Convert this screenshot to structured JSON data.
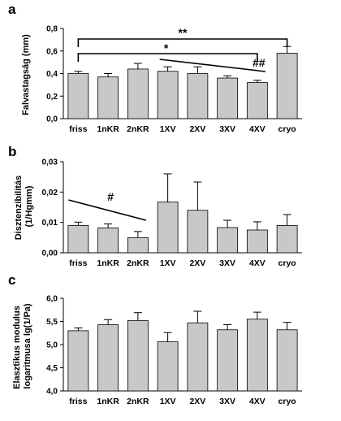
{
  "chart_data": [
    {
      "type": "bar",
      "panel": "a",
      "ylabel": "Falvastagság (mm)",
      "categories": [
        "friss",
        "1nKR",
        "2nKR",
        "1XV",
        "2XV",
        "3XV",
        "4XV",
        "cryo"
      ],
      "values": [
        0.4,
        0.37,
        0.44,
        0.42,
        0.4,
        0.36,
        0.32,
        0.58
      ],
      "errors": [
        0.02,
        0.03,
        0.05,
        0.04,
        0.06,
        0.02,
        0.02,
        0.06
      ],
      "ylim": [
        0,
        0.8
      ],
      "yticks": [
        "0,0",
        "0,2",
        "0,4",
        "0,6",
        "0,8"
      ],
      "annotations": [
        {
          "label": "**",
          "from": "friss",
          "to": "cryo"
        },
        {
          "label": "*",
          "from": "friss",
          "to": "4XV"
        },
        {
          "label": "##",
          "from": "1XV",
          "to": "4XV"
        }
      ]
    },
    {
      "type": "bar",
      "panel": "b",
      "ylabel": "Disztenzibilitás (1/Hgmm)",
      "categories": [
        "friss",
        "1nKR",
        "2nKR",
        "1XV",
        "2XV",
        "3XV",
        "4XV",
        "cryo"
      ],
      "values": [
        0.009,
        0.0082,
        0.005,
        0.0167,
        0.014,
        0.0083,
        0.0075,
        0.009
      ],
      "errors": [
        0.0011,
        0.0013,
        0.002,
        0.0093,
        0.0093,
        0.0024,
        0.0027,
        0.0036
      ],
      "ylim": [
        0,
        0.03
      ],
      "yticks": [
        "0,00",
        "0,01",
        "0,02",
        "0,03"
      ],
      "annotations": [
        {
          "label": "#",
          "from": "friss",
          "to": "2nKR"
        }
      ]
    },
    {
      "type": "bar",
      "panel": "c",
      "ylabel": "Elasztikus modulus logaritmusa lg(1/Pa)",
      "categories": [
        "friss",
        "1nKR",
        "2nKR",
        "1XV",
        "2XV",
        "3XV",
        "4XV",
        "cryo"
      ],
      "values": [
        5.3,
        5.43,
        5.52,
        5.06,
        5.47,
        5.32,
        5.55,
        5.32
      ],
      "errors": [
        0.06,
        0.11,
        0.17,
        0.2,
        0.25,
        0.11,
        0.15,
        0.16
      ],
      "ylim": [
        4.0,
        6.0
      ],
      "yticks": [
        "4,0",
        "4,5",
        "5,0",
        "5,5",
        "6,0"
      ],
      "annotations": []
    }
  ]
}
